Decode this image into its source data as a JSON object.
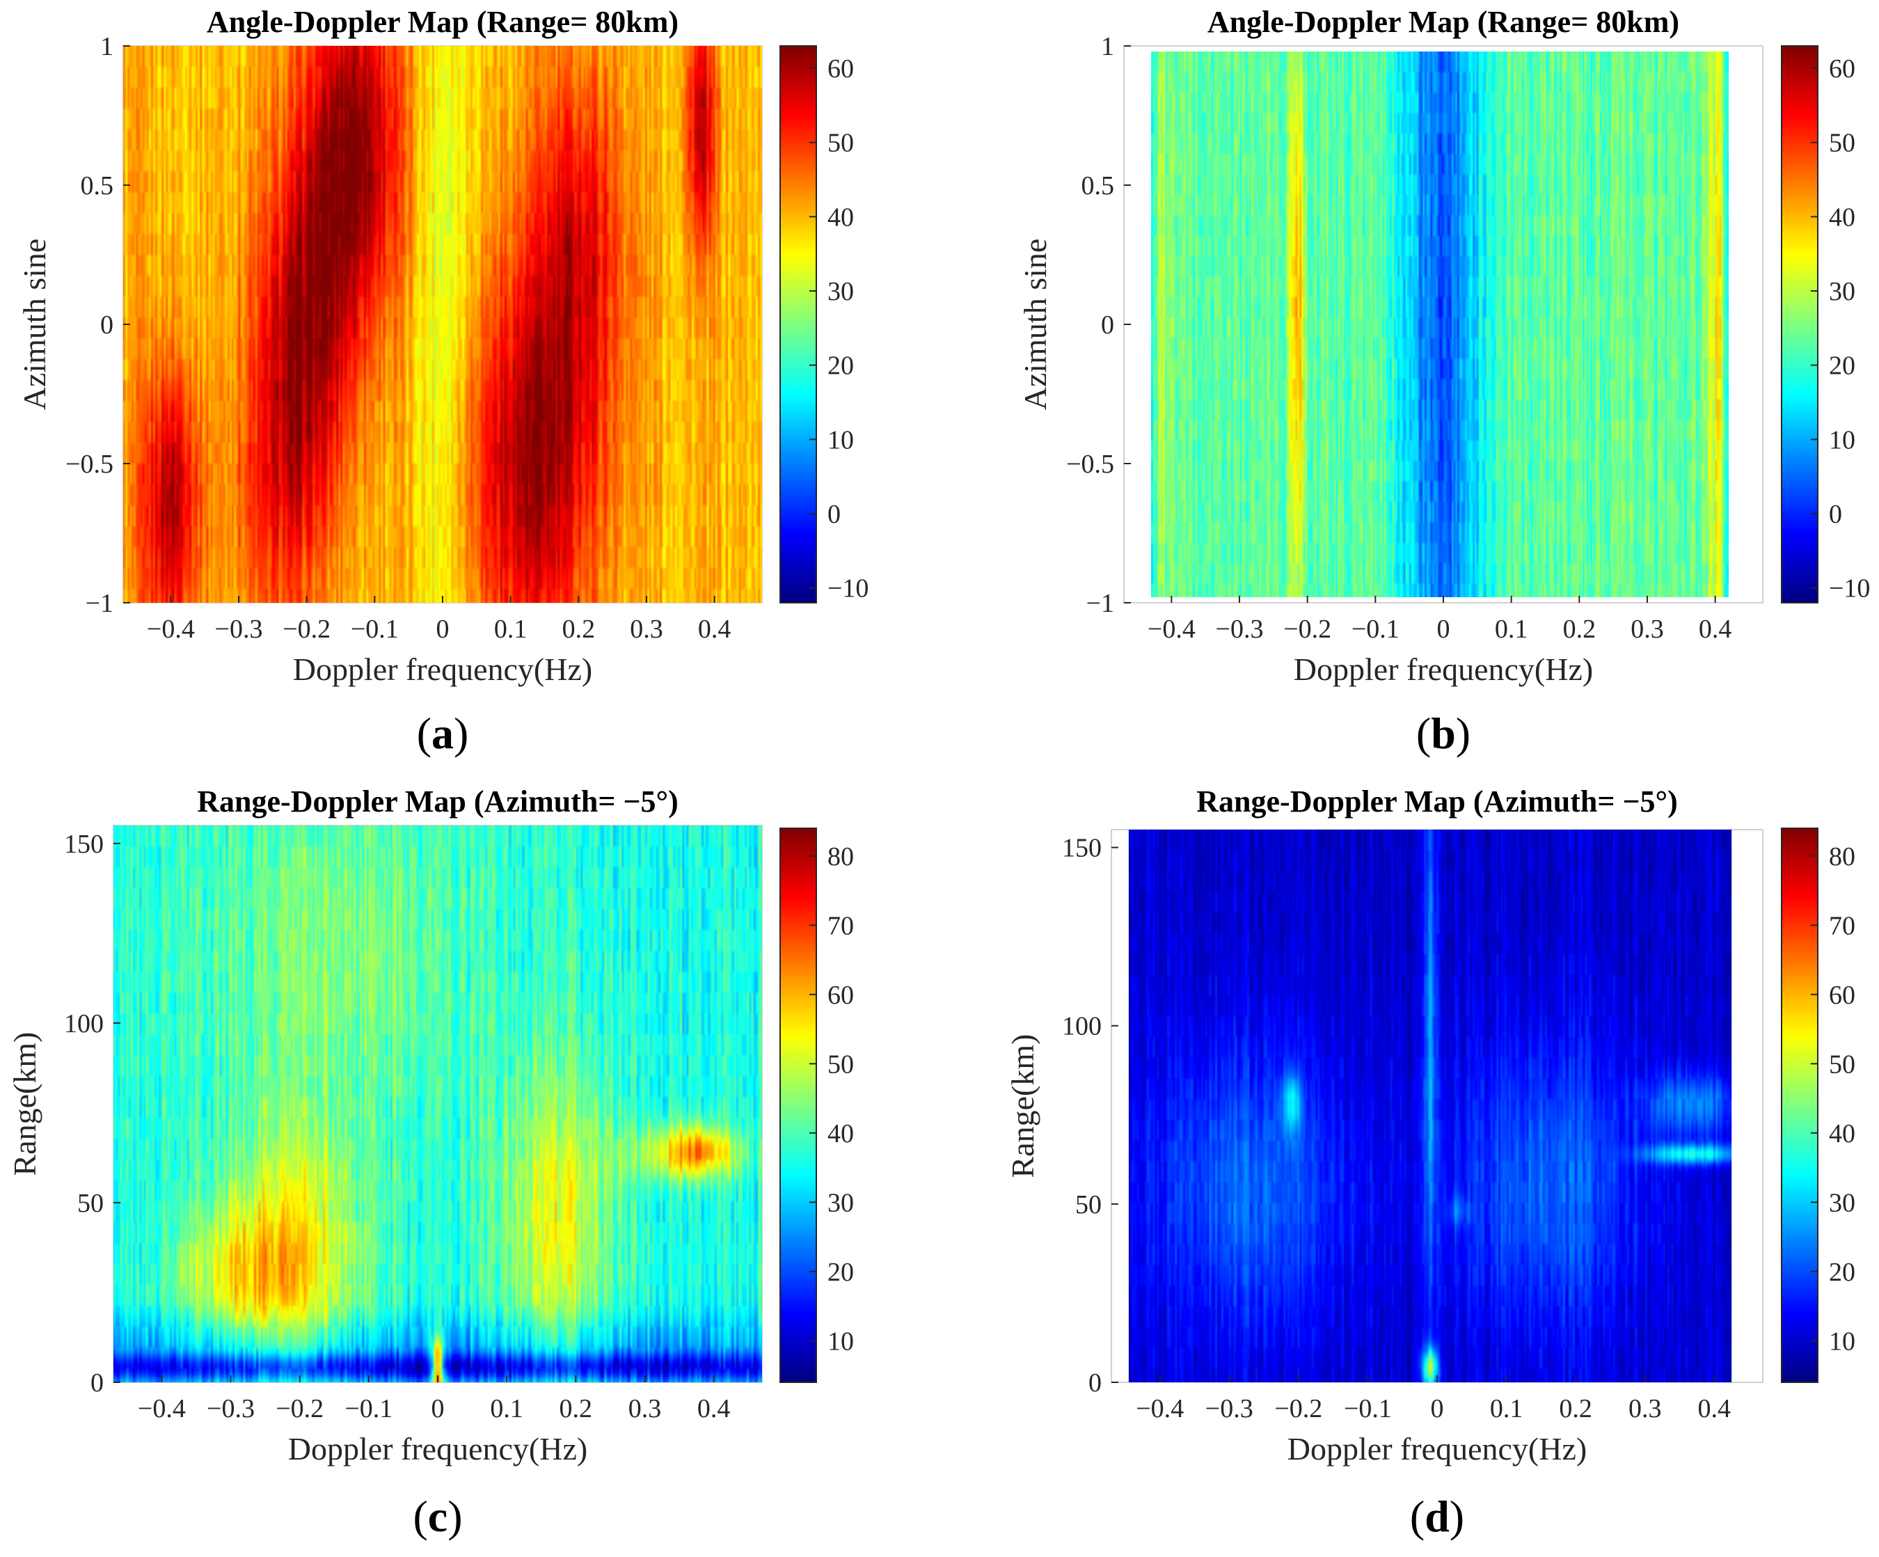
{
  "figure": {
    "panel_letters": [
      "a",
      "b",
      "c",
      "d"
    ]
  },
  "colormap": {
    "name": "jet",
    "stops": [
      "#00007f",
      "#0000ff",
      "#007fff",
      "#00ffff",
      "#7fff7f",
      "#ffff00",
      "#ff7f00",
      "#ff0000",
      "#7f0000"
    ]
  },
  "chart_data": [
    {
      "id": "a",
      "type": "heatmap",
      "title": "Angle-Doppler Map (Range= 80km)",
      "xlabel": "Doppler frequency(Hz)",
      "ylabel": "Azimuth sine",
      "xlim": [
        -0.47,
        0.47
      ],
      "ylim": [
        -1,
        1
      ],
      "data_xlim": [
        -0.47,
        0.47
      ],
      "xticks": [
        -0.4,
        -0.3,
        -0.2,
        -0.1,
        0,
        0.1,
        0.2,
        0.3,
        0.4
      ],
      "xtick_labels": [
        "−0.4",
        "−0.3",
        "−0.2",
        "−0.1",
        "0",
        "0.1",
        "0.2",
        "0.3",
        "0.4"
      ],
      "yticks": [
        -1,
        -0.5,
        0,
        0.5,
        1
      ],
      "ytick_labels": [
        "−1",
        "−0.5",
        "0",
        "0.5",
        "1"
      ],
      "colorbar": {
        "clim": [
          -12,
          63
        ],
        "ticks": [
          -10,
          0,
          10,
          20,
          30,
          40,
          50,
          60
        ],
        "tick_labels": [
          "−10",
          "0",
          "10",
          "20",
          "30",
          "40",
          "50",
          "60"
        ]
      },
      "field": {
        "base": 40,
        "noise": 6,
        "blobs": [
          {
            "x": -0.13,
            "y": 0.65,
            "sx": 0.05,
            "sy": 0.45,
            "amp": 22
          },
          {
            "x": -0.2,
            "y": 0.0,
            "sx": 0.05,
            "sy": 0.45,
            "amp": 18
          },
          {
            "x": -0.24,
            "y": -0.6,
            "sx": 0.05,
            "sy": 0.4,
            "amp": 10
          },
          {
            "x": -0.4,
            "y": -0.65,
            "sx": 0.03,
            "sy": 0.35,
            "amp": 20
          },
          {
            "x": 0.13,
            "y": -0.5,
            "sx": 0.07,
            "sy": 0.5,
            "amp": 20
          },
          {
            "x": 0.2,
            "y": 0.3,
            "sx": 0.05,
            "sy": 0.45,
            "amp": 14
          },
          {
            "x": 0.38,
            "y": 0.7,
            "sx": 0.015,
            "sy": 0.3,
            "amp": 18
          },
          {
            "x": 0.0,
            "y": 0.0,
            "sx": 0.03,
            "sy": 1.0,
            "amp": -8
          }
        ]
      }
    },
    {
      "id": "b",
      "type": "heatmap",
      "title": "Angle-Doppler Map (Range= 80km)",
      "xlabel": "Doppler frequency(Hz)",
      "ylabel": "Azimuth sine",
      "xlim": [
        -0.47,
        0.47
      ],
      "ylim": [
        -1,
        1
      ],
      "data_xlim": [
        -0.43,
        0.42
      ],
      "data_ylim": [
        -0.98,
        0.98
      ],
      "xticks": [
        -0.4,
        -0.3,
        -0.2,
        -0.1,
        0,
        0.1,
        0.2,
        0.3,
        0.4
      ],
      "xtick_labels": [
        "−0.4",
        "−0.3",
        "−0.2",
        "−0.1",
        "0",
        "0.1",
        "0.2",
        "0.3",
        "0.4"
      ],
      "yticks": [
        -1,
        -0.5,
        0,
        0.5,
        1
      ],
      "ytick_labels": [
        "−1",
        "−0.5",
        "0",
        "0.5",
        "1"
      ],
      "colorbar": {
        "clim": [
          -12,
          63
        ],
        "ticks": [
          -10,
          0,
          10,
          20,
          30,
          40,
          50,
          60
        ],
        "tick_labels": [
          "−10",
          "0",
          "10",
          "20",
          "30",
          "40",
          "50",
          "60"
        ]
      },
      "field": {
        "base": 23,
        "noise": 7,
        "blobs": [
          {
            "x": -0.215,
            "y": 0.0,
            "sx": 0.008,
            "sy": 0.7,
            "amp": 18
          },
          {
            "x": -0.42,
            "y": 0.0,
            "sx": 0.012,
            "sy": 1.0,
            "amp": 8
          },
          {
            "x": 0.405,
            "y": 0.0,
            "sx": 0.012,
            "sy": 1.0,
            "amp": 12
          },
          {
            "x": -0.002,
            "y": 0.0,
            "sx": 0.04,
            "sy": 2.0,
            "amp": -20
          },
          {
            "x": -0.43,
            "y": 0.0,
            "sx": 0.006,
            "sy": 2.0,
            "amp": -14
          },
          {
            "x": 0.42,
            "y": 0.0,
            "sx": 0.006,
            "sy": 2.0,
            "amp": -14
          }
        ]
      }
    },
    {
      "id": "c",
      "type": "heatmap",
      "title": "Range-Doppler Map (Azimuth= −5°)",
      "xlabel": "Doppler frequency(Hz)",
      "ylabel": "Range(km)",
      "xlim": [
        -0.47,
        0.47
      ],
      "ylim": [
        0,
        155
      ],
      "data_xlim": [
        -0.47,
        0.47
      ],
      "xticks": [
        -0.4,
        -0.3,
        -0.2,
        -0.1,
        0,
        0.1,
        0.2,
        0.3,
        0.4
      ],
      "xtick_labels": [
        "−0.4",
        "−0.3",
        "−0.2",
        "−0.1",
        "0",
        "0.1",
        "0.2",
        "0.3",
        "0.4"
      ],
      "yticks": [
        0,
        50,
        100,
        150
      ],
      "ytick_labels": [
        "0",
        "50",
        "100",
        "150"
      ],
      "colorbar": {
        "clim": [
          4,
          84
        ],
        "ticks": [
          10,
          20,
          30,
          40,
          50,
          60,
          70,
          80
        ],
        "tick_labels": [
          "10",
          "20",
          "30",
          "40",
          "50",
          "60",
          "70",
          "80"
        ]
      },
      "field": {
        "base": 36,
        "noise": 8,
        "blobs": [
          {
            "x": -0.21,
            "y": 35,
            "sx": 0.07,
            "sy": 25,
            "amp": 20
          },
          {
            "x": -0.3,
            "y": 30,
            "sx": 0.06,
            "sy": 12,
            "amp": 12
          },
          {
            "x": 0.17,
            "y": 45,
            "sx": 0.06,
            "sy": 30,
            "amp": 16
          },
          {
            "x": -0.15,
            "y": 120,
            "sx": 0.15,
            "sy": 35,
            "amp": 8
          },
          {
            "x": 0.38,
            "y": 64,
            "sx": 0.04,
            "sy": 5,
            "amp": 24
          },
          {
            "x": 0.32,
            "y": 64,
            "sx": 0.05,
            "sy": 6,
            "amp": 8
          },
          {
            "x": 0.0,
            "y": 4,
            "sx": 0.006,
            "sy": 6,
            "amp": 48
          },
          {
            "x": 0.0,
            "y": 4,
            "sx": 0.8,
            "sy": 3,
            "amp": -24
          },
          {
            "x": 0.0,
            "y": 12,
            "sx": 0.8,
            "sy": 5,
            "amp": -8
          }
        ]
      }
    },
    {
      "id": "d",
      "type": "heatmap",
      "title": "Range-Doppler Map (Azimuth= −5°)",
      "xlabel": "Doppler frequency(Hz)",
      "ylabel": "Range(km)",
      "xlim": [
        -0.47,
        0.47
      ],
      "ylim": [
        0,
        155
      ],
      "data_xlim": [
        -0.445,
        0.425
      ],
      "xticks": [
        -0.4,
        -0.3,
        -0.2,
        -0.1,
        0,
        0.1,
        0.2,
        0.3,
        0.4
      ],
      "xtick_labels": [
        "−0.4",
        "−0.3",
        "−0.2",
        "−0.1",
        "0",
        "0.1",
        "0.2",
        "0.3",
        "0.4"
      ],
      "yticks": [
        0,
        50,
        100,
        150
      ],
      "ytick_labels": [
        "0",
        "50",
        "100",
        "150"
      ],
      "colorbar": {
        "clim": [
          4,
          84
        ],
        "ticks": [
          10,
          20,
          30,
          40,
          50,
          60,
          70,
          80
        ],
        "tick_labels": [
          "10",
          "20",
          "30",
          "40",
          "50",
          "60",
          "70",
          "80"
        ]
      },
      "field": {
        "base": 10,
        "noise": 5,
        "blobs": [
          {
            "x": -0.27,
            "y": 55,
            "sx": 0.11,
            "sy": 30,
            "amp": 12
          },
          {
            "x": 0.16,
            "y": 55,
            "sx": 0.1,
            "sy": 30,
            "amp": 12
          },
          {
            "x": -0.21,
            "y": 78,
            "sx": 0.01,
            "sy": 6,
            "amp": 16
          },
          {
            "x": 0.37,
            "y": 78,
            "sx": 0.05,
            "sy": 6,
            "amp": 14
          },
          {
            "x": 0.37,
            "y": 64,
            "sx": 0.05,
            "sy": 2,
            "amp": 24
          },
          {
            "x": -0.01,
            "y": 100,
            "sx": 0.006,
            "sy": 55,
            "amp": 16
          },
          {
            "x": -0.01,
            "y": 4,
            "sx": 0.008,
            "sy": 4,
            "amp": 34
          },
          {
            "x": 0.03,
            "y": 48,
            "sx": 0.01,
            "sy": 3,
            "amp": 8
          }
        ]
      }
    }
  ]
}
